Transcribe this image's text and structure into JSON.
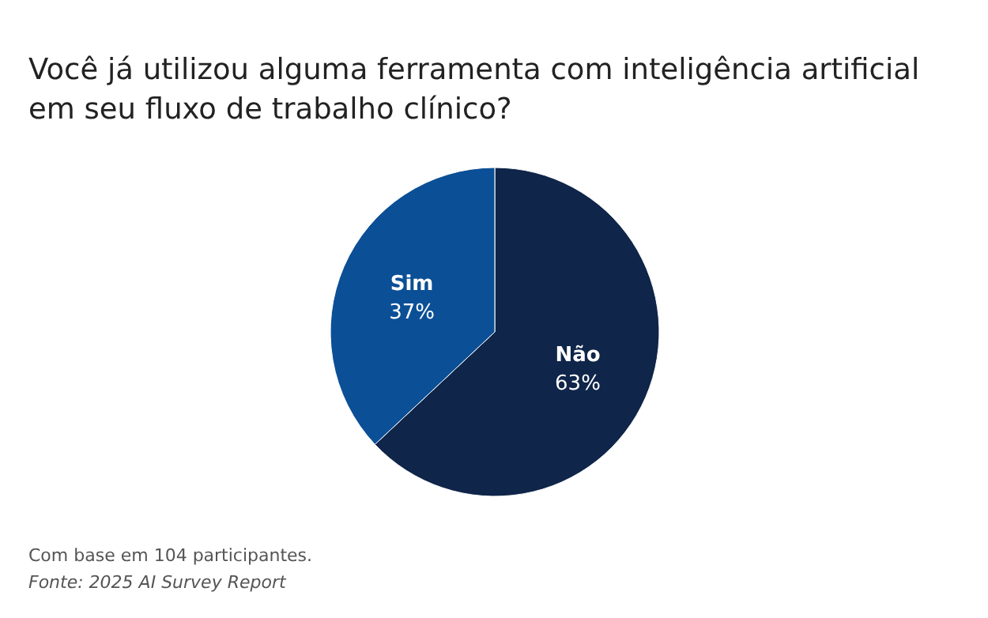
{
  "chart_data": {
    "type": "pie",
    "title": "Você já utilizou alguma ferramenta com inteligência artificial em seu fluxo de trabalho clínico?",
    "categories": [
      "Não",
      "Sim"
    ],
    "values": [
      63,
      37
    ],
    "colors": [
      "#0f2549",
      "#0b4f96"
    ],
    "value_labels": [
      "63%",
      "37%"
    ],
    "annotations": [
      "Com base em 104 participantes.",
      "Fonte: 2025 AI Survey Report"
    ]
  }
}
